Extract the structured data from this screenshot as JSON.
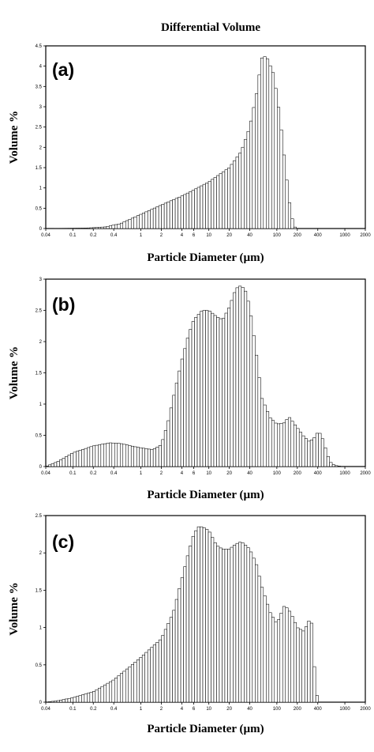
{
  "figure_title": "Differential Volume",
  "chart_data": [
    {
      "type": "bar",
      "panel_label": "(a)",
      "title": "",
      "xlabel": "Particle Diameter (µm)",
      "ylabel": "Volume %",
      "x_scale": "log",
      "xlim": [
        0.04,
        2000
      ],
      "ylim": [
        0,
        4.5
      ],
      "grid": false,
      "x_ticks": [
        0.04,
        0.1,
        0.2,
        0.4,
        1,
        2,
        4,
        6,
        10,
        20,
        40,
        100,
        200,
        400,
        1000,
        2000
      ],
      "x_tick_labels": [
        "0.04",
        "0.1",
        "0.2",
        "0.4",
        "1",
        "2",
        "4",
        "6",
        "10",
        "20",
        "40",
        "100",
        "200",
        "400",
        "1000",
        "2000"
      ],
      "y_ticks": [
        0,
        0.5,
        1,
        1.5,
        2,
        2.5,
        3,
        3.5,
        4,
        4.5
      ],
      "y_tick_labels": [
        "0",
        "0.5",
        "1",
        "1.5",
        "2",
        "2.5",
        "3",
        "3.5",
        "4",
        "4.5"
      ],
      "curve": {
        "x": [
          0.04,
          0.15,
          0.3,
          0.5,
          1,
          2,
          4,
          6,
          10,
          20,
          30,
          40,
          50,
          60,
          70,
          90,
          110,
          140,
          160,
          180,
          200
        ],
        "y": [
          0,
          0.01,
          0.04,
          0.12,
          0.35,
          0.58,
          0.8,
          0.95,
          1.15,
          1.5,
          1.9,
          2.5,
          3.3,
          4.2,
          4.25,
          3.8,
          2.8,
          1.2,
          0.4,
          0.05,
          0
        ]
      }
    },
    {
      "type": "bar",
      "panel_label": "(b)",
      "title": "",
      "xlabel": "Particle Diameter (µm)",
      "ylabel": "Volume %",
      "x_scale": "log",
      "xlim": [
        0.04,
        2000
      ],
      "ylim": [
        0,
        3
      ],
      "grid": false,
      "x_ticks": [
        0.04,
        0.1,
        0.2,
        0.4,
        1,
        2,
        4,
        6,
        10,
        20,
        40,
        100,
        200,
        400,
        1000,
        2000
      ],
      "x_tick_labels": [
        "0.04",
        "0.1",
        "0.2",
        "0.4",
        "1",
        "2",
        "4",
        "6",
        "10",
        "20",
        "40",
        "100",
        "200",
        "400",
        "1000",
        "2000"
      ],
      "y_ticks": [
        0,
        0.5,
        1,
        1.5,
        2,
        2.5,
        3
      ],
      "y_tick_labels": [
        "0",
        "0.5",
        "1",
        "1.5",
        "2",
        "2.5",
        "3"
      ],
      "curve": {
        "x": [
          0.04,
          0.06,
          0.1,
          0.2,
          0.35,
          0.5,
          0.8,
          1,
          1.5,
          2,
          2.5,
          3,
          4,
          5,
          6,
          8,
          10,
          13,
          16,
          20,
          25,
          30,
          35,
          40,
          50,
          60,
          80,
          100,
          130,
          150,
          200,
          250,
          300,
          350,
          400,
          450,
          500,
          600,
          700,
          800,
          900
        ],
        "y": [
          0,
          0.08,
          0.22,
          0.33,
          0.38,
          0.37,
          0.32,
          0.3,
          0.27,
          0.35,
          0.7,
          1.1,
          1.7,
          2.1,
          2.35,
          2.5,
          2.5,
          2.4,
          2.35,
          2.55,
          2.85,
          2.9,
          2.8,
          2.55,
          1.8,
          1.1,
          0.78,
          0.68,
          0.7,
          0.8,
          0.62,
          0.48,
          0.4,
          0.45,
          0.55,
          0.52,
          0.35,
          0.08,
          0.02,
          0.01,
          0
        ]
      }
    },
    {
      "type": "bar",
      "panel_label": "(c)",
      "title": "",
      "xlabel": "Particle Diameter (µm)",
      "ylabel": "Volume %",
      "x_scale": "log",
      "xlim": [
        0.04,
        2000
      ],
      "ylim": [
        0,
        2.5
      ],
      "grid": false,
      "x_ticks": [
        0.04,
        0.1,
        0.2,
        0.4,
        1,
        2,
        4,
        6,
        10,
        20,
        40,
        100,
        200,
        400,
        1000,
        2000
      ],
      "x_tick_labels": [
        "0.04",
        "0.1",
        "0.2",
        "0.4",
        "1",
        "2",
        "4",
        "6",
        "10",
        "20",
        "40",
        "100",
        "200",
        "400",
        "1000",
        "2000"
      ],
      "y_ticks": [
        0,
        0.5,
        1,
        1.5,
        2,
        2.5
      ],
      "y_tick_labels": [
        "0",
        "0.5",
        "1",
        "1.5",
        "2",
        "2.5"
      ],
      "curve": {
        "x": [
          0.04,
          0.06,
          0.1,
          0.2,
          0.4,
          0.7,
          1,
          2,
          3,
          4,
          5,
          6,
          7,
          8,
          10,
          13,
          16,
          20,
          25,
          30,
          35,
          40,
          50,
          60,
          80,
          100,
          130,
          160,
          200,
          250,
          300,
          330,
          350,
          380,
          400
        ],
        "y": [
          0,
          0.02,
          0.06,
          0.14,
          0.3,
          0.48,
          0.6,
          0.85,
          1.2,
          1.65,
          2.0,
          2.25,
          2.35,
          2.35,
          2.3,
          2.1,
          2.05,
          2.05,
          2.12,
          2.15,
          2.1,
          2.05,
          1.85,
          1.55,
          1.2,
          1.05,
          1.3,
          1.2,
          1.0,
          0.95,
          1.1,
          1.05,
          0.55,
          0.2,
          0
        ]
      }
    }
  ]
}
